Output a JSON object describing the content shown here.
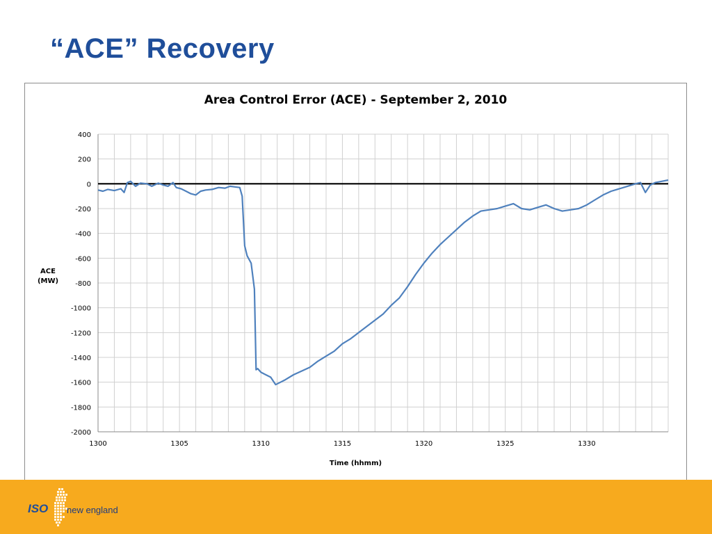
{
  "slide": {
    "title": "“ACE” Recovery"
  },
  "logo": {
    "iso_text": "ISO",
    "name_text": "new england"
  },
  "colors": {
    "title": "#1f4e9a",
    "footer": "#f7aa1e",
    "series": "#4f81bd",
    "zero_line": "#000000",
    "grid": "#d0d0d0"
  },
  "chart_data": {
    "type": "line",
    "title": "Area Control Error (ACE) - September 2, 2010",
    "xlabel": "Time (hhmm)",
    "ylabel_line1": "ACE",
    "ylabel_line2": "(MW)",
    "xlim": [
      1300,
      1335
    ],
    "ylim": [
      -2000,
      400
    ],
    "x_ticks": [
      1300,
      1305,
      1310,
      1315,
      1320,
      1325,
      1330
    ],
    "y_ticks": [
      400,
      200,
      0,
      -200,
      -400,
      -600,
      -800,
      -1000,
      -1200,
      -1400,
      -1600,
      -1800,
      -2000
    ],
    "grid": true,
    "reference_line": 0,
    "series": [
      {
        "x": [
          1300,
          1300.3,
          1300.6,
          1301,
          1301.4,
          1301.6,
          1301.8,
          1302,
          1302.3,
          1302.6,
          1303,
          1303.3,
          1303.7,
          1304,
          1304.3,
          1304.6,
          1304.8,
          1305.1,
          1305.4,
          1305.7,
          1306,
          1306.3,
          1306.6,
          1307,
          1307.4,
          1307.8,
          1308.1,
          1308.4,
          1308.7,
          1308.85,
          1309.0,
          1309.15,
          1309.4,
          1309.6,
          1309.7,
          1309.8,
          1310.0,
          1310.3,
          1310.6,
          1310.9,
          1311.2,
          1311.5,
          1312,
          1312.5,
          1313,
          1313.5,
          1314,
          1314.5,
          1315,
          1315.5,
          1316,
          1316.5,
          1317,
          1317.5,
          1318,
          1318.5,
          1319,
          1319.5,
          1320,
          1320.5,
          1321,
          1321.5,
          1322,
          1322.5,
          1323,
          1323.5,
          1324,
          1324.5,
          1325,
          1325.5,
          1326,
          1326.5,
          1327,
          1327.5,
          1328,
          1328.5,
          1329,
          1329.5,
          1330,
          1330.5,
          1331,
          1331.5,
          1332,
          1332.5,
          1333,
          1333.3,
          1333.6,
          1333.9,
          1334.2,
          1334.6,
          1335
        ],
        "values": [
          -50,
          -60,
          -45,
          -55,
          -40,
          -70,
          10,
          20,
          -20,
          5,
          0,
          -20,
          5,
          -10,
          -20,
          10,
          -30,
          -40,
          -60,
          -80,
          -90,
          -60,
          -50,
          -45,
          -30,
          -35,
          -20,
          -25,
          -30,
          -100,
          -500,
          -580,
          -640,
          -850,
          -1500,
          -1490,
          -1520,
          -1540,
          -1560,
          -1620,
          -1600,
          -1580,
          -1540,
          -1510,
          -1480,
          -1430,
          -1390,
          -1350,
          -1290,
          -1250,
          -1200,
          -1150,
          -1100,
          -1050,
          -980,
          -920,
          -830,
          -730,
          -640,
          -560,
          -490,
          -430,
          -370,
          -310,
          -260,
          -220,
          -210,
          -200,
          -180,
          -160,
          -200,
          -210,
          -190,
          -170,
          -200,
          -220,
          -210,
          -200,
          -170,
          -130,
          -90,
          -60,
          -40,
          -20,
          0,
          10,
          -70,
          -10,
          10,
          20,
          30
        ]
      }
    ]
  }
}
